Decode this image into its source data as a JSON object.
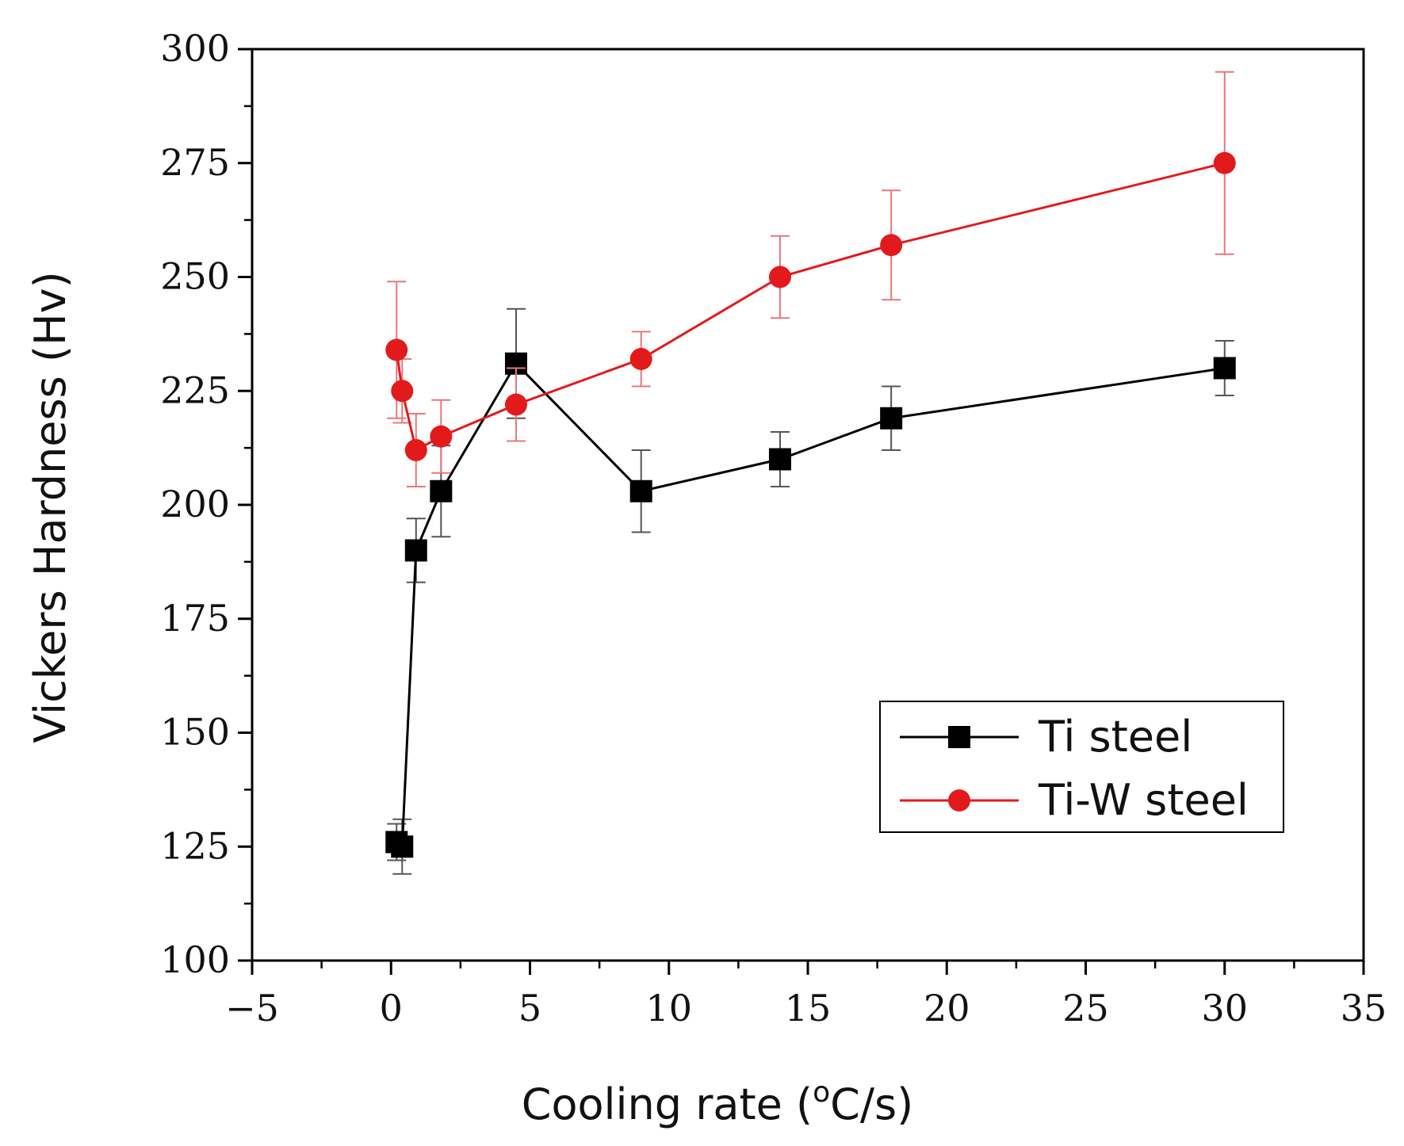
{
  "chart_data": {
    "type": "line",
    "title": "",
    "xlabel": "Cooling rate (",
    "xlabel_sup": "o",
    "xlabel_tail": "C/s)",
    "ylabel": "Vickers Hardness (Hv)",
    "xlim": [
      -5,
      35
    ],
    "ylim": [
      100,
      300
    ],
    "x_ticks": [
      -5,
      0,
      5,
      10,
      15,
      20,
      25,
      30,
      35
    ],
    "x_tick_labels": [
      "−5",
      "0",
      "5",
      "10",
      "15",
      "20",
      "25",
      "30",
      "35"
    ],
    "y_ticks": [
      100,
      125,
      150,
      175,
      200,
      225,
      250,
      275,
      300
    ],
    "y_tick_labels": [
      "100",
      "125",
      "150",
      "175",
      "200",
      "225",
      "250",
      "275",
      "300"
    ],
    "grid": false,
    "legend_position": "lower-right",
    "series": [
      {
        "name": "Ti steel",
        "marker": "square",
        "color": "#000000",
        "x": [
          0.2,
          0.4,
          0.9,
          1.8,
          4.5,
          9,
          14,
          18,
          30
        ],
        "y": [
          126,
          125,
          190,
          203,
          231,
          203,
          210,
          219,
          230
        ],
        "error": [
          4,
          6,
          7,
          10,
          12,
          9,
          6,
          7,
          6
        ]
      },
      {
        "name": "Ti-W steel",
        "marker": "circle",
        "color": "#e31a1c",
        "x": [
          0.2,
          0.4,
          0.9,
          1.8,
          4.5,
          9,
          14,
          18,
          30
        ],
        "y": [
          234,
          225,
          212,
          215,
          222,
          232,
          250,
          257,
          275
        ],
        "error": [
          15,
          7,
          8,
          8,
          8,
          6,
          9,
          12,
          20
        ]
      }
    ]
  }
}
